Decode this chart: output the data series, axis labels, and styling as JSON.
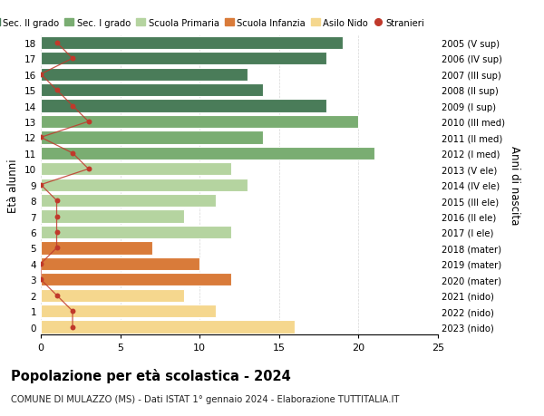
{
  "ages": [
    18,
    17,
    16,
    15,
    14,
    13,
    12,
    11,
    10,
    9,
    8,
    7,
    6,
    5,
    4,
    3,
    2,
    1,
    0
  ],
  "right_labels": [
    "2005 (V sup)",
    "2006 (IV sup)",
    "2007 (III sup)",
    "2008 (II sup)",
    "2009 (I sup)",
    "2010 (III med)",
    "2011 (II med)",
    "2012 (I med)",
    "2013 (V ele)",
    "2014 (IV ele)",
    "2015 (III ele)",
    "2016 (II ele)",
    "2017 (I ele)",
    "2018 (mater)",
    "2019 (mater)",
    "2020 (mater)",
    "2021 (nido)",
    "2022 (nido)",
    "2023 (nido)"
  ],
  "bar_values": [
    19,
    18,
    13,
    14,
    18,
    20,
    14,
    21,
    12,
    13,
    11,
    9,
    12,
    7,
    10,
    12,
    9,
    11,
    16
  ],
  "bar_colors": [
    "#4a7c59",
    "#4a7c59",
    "#4a7c59",
    "#4a7c59",
    "#4a7c59",
    "#7aad72",
    "#7aad72",
    "#7aad72",
    "#b5d4a0",
    "#b5d4a0",
    "#b5d4a0",
    "#b5d4a0",
    "#b5d4a0",
    "#d97b3a",
    "#d97b3a",
    "#d97b3a",
    "#f5d78e",
    "#f5d78e",
    "#f5d78e"
  ],
  "stranieri_values": [
    1,
    2,
    0,
    1,
    2,
    3,
    0,
    2,
    3,
    0,
    1,
    1,
    1,
    1,
    0,
    0,
    1,
    2,
    2
  ],
  "legend_labels": [
    "Sec. II grado",
    "Sec. I grado",
    "Scuola Primaria",
    "Scuola Infanzia",
    "Asilo Nido",
    "Stranieri"
  ],
  "legend_colors": [
    "#4a7c59",
    "#7aad72",
    "#b5d4a0",
    "#d97b3a",
    "#f5d78e",
    "#c0392b"
  ],
  "ylabel_left": "Età alunni",
  "ylabel_right": "Anni di nascita",
  "title": "Popolazione per età scolastica - 2024",
  "subtitle": "COMUNE DI MULAZZO (MS) - Dati ISTAT 1° gennaio 2024 - Elaborazione TUTTITALIA.IT",
  "xlim": [
    0,
    25
  ],
  "background_color": "#ffffff",
  "grid_color": "#cccccc",
  "stranieri_color": "#c0392b"
}
